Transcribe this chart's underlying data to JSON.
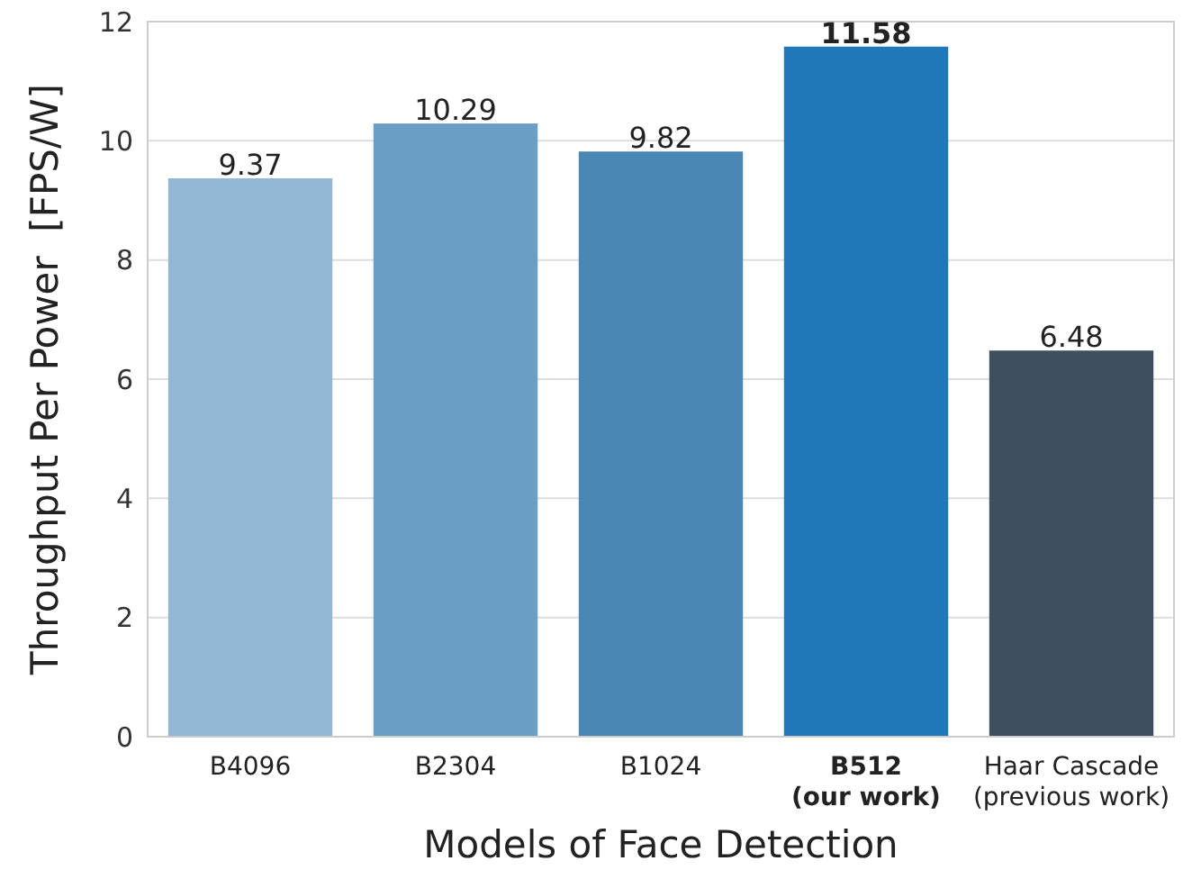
{
  "chart_data": {
    "type": "bar",
    "xlabel": "Models of Face Detection",
    "ylabel": "Throughput Per Power  [FPS/W]",
    "categories": [
      "B4096",
      "B2304",
      "B1024",
      "B512\n(our work)",
      "Haar Cascade\n(previous work)"
    ],
    "values": [
      9.37,
      10.29,
      9.82,
      11.58,
      6.48
    ],
    "colors": [
      "#93b6d2",
      "#6a9ec3",
      "#4a87b4",
      "#2178b8",
      "#3d4f5f"
    ],
    "ylim": [
      0,
      12
    ],
    "yticks": [
      0,
      2,
      4,
      6,
      8,
      10,
      12
    ],
    "grid": "y",
    "data_labels": true
  }
}
